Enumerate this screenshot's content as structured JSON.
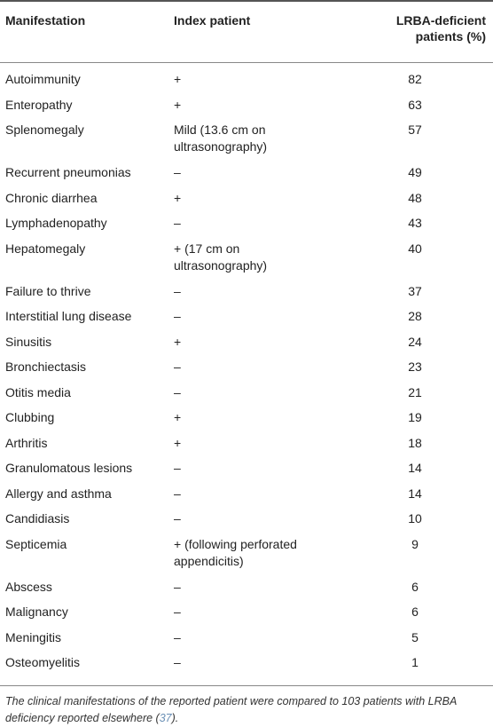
{
  "table": {
    "headers": {
      "manifestation": "Manifestation",
      "index_patient": "Index patient",
      "lrba_line1": "LRBA-deficient",
      "lrba_line2": "patients (%)"
    },
    "rows": [
      {
        "manifestation": "Autoimmunity",
        "index": "+",
        "percent": "82"
      },
      {
        "manifestation": "Enteropathy",
        "index": "+",
        "percent": "63"
      },
      {
        "manifestation": "Splenomegaly",
        "index": "Mild (13.6 cm on ultrasonography)",
        "percent": "57"
      },
      {
        "manifestation": "Recurrent pneumonias",
        "index": "–",
        "percent": "49"
      },
      {
        "manifestation": "Chronic diarrhea",
        "index": "+",
        "percent": "48"
      },
      {
        "manifestation": "Lymphadenopathy",
        "index": "–",
        "percent": "43"
      },
      {
        "manifestation": "Hepatomegaly",
        "index": "+ (17 cm on ultrasonography)",
        "percent": "40"
      },
      {
        "manifestation": "Failure to thrive",
        "index": "–",
        "percent": "37"
      },
      {
        "manifestation": "Interstitial lung disease",
        "index": "–",
        "percent": "28"
      },
      {
        "manifestation": "Sinusitis",
        "index": "+",
        "percent": "24"
      },
      {
        "manifestation": "Bronchiectasis",
        "index": "–",
        "percent": "23"
      },
      {
        "manifestation": "Otitis media",
        "index": "–",
        "percent": "21"
      },
      {
        "manifestation": "Clubbing",
        "index": "+",
        "percent": "19"
      },
      {
        "manifestation": "Arthritis",
        "index": "+",
        "percent": "18"
      },
      {
        "manifestation": "Granulomatous lesions",
        "index": "–",
        "percent": "14"
      },
      {
        "manifestation": "Allergy and asthma",
        "index": "–",
        "percent": "14"
      },
      {
        "manifestation": "Candidiasis",
        "index": "–",
        "percent": "10"
      },
      {
        "manifestation": "Septicemia",
        "index": "+ (following perforated appendicitis)",
        "percent": "9"
      },
      {
        "manifestation": "Abscess",
        "index": "–",
        "percent": "6"
      },
      {
        "manifestation": "Malignancy",
        "index": "–",
        "percent": "6"
      },
      {
        "manifestation": "Meningitis",
        "index": "–",
        "percent": "5"
      },
      {
        "manifestation": "Osteomyelitis",
        "index": "–",
        "percent": "1"
      }
    ],
    "footnote": {
      "text": "The clinical manifestations of the reported patient were compared to 103 patients with LRBA deficiency reported elsewhere (",
      "citation": "37",
      "end": ")."
    }
  }
}
